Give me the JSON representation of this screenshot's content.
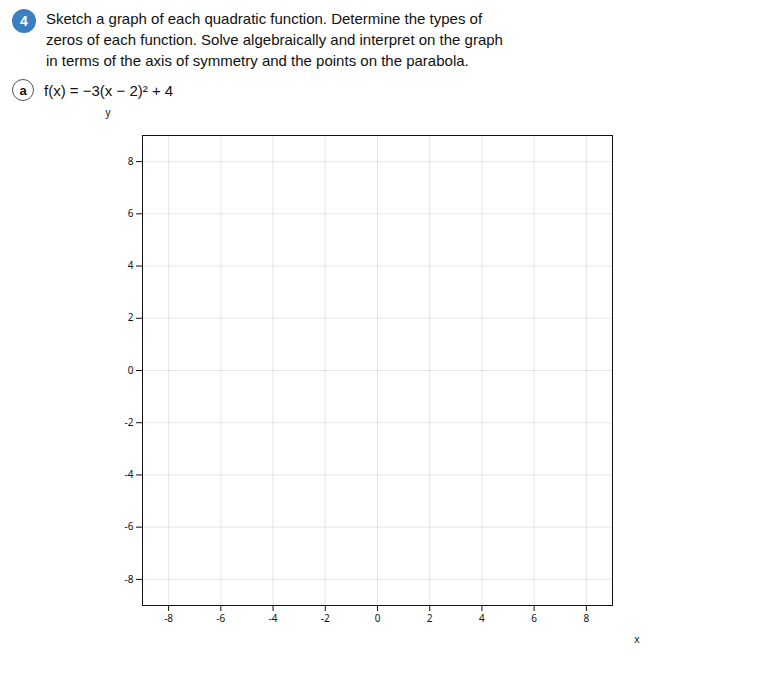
{
  "chart_data": {
    "type": "coordinate_grid",
    "title": "Sketch a graph of each quadratic function. Determine the types of\nzeros of each function. Solve algebraically and interpret on the graph\nin terms of the axis of symmetry and the points on the parabola.",
    "subtitle": "f(x) = −3(x − 2)² + 4",
    "annotations": [
      "4",
      "a"
    ],
    "x_label": "x",
    "y_label": "y",
    "xlim": [
      -9,
      9
    ],
    "ylim": [
      -9,
      9
    ],
    "xticks": [
      -8,
      -6,
      -4,
      -2,
      0,
      2,
      4,
      6,
      8
    ],
    "yticks": [
      -8,
      -6,
      -4,
      -2,
      0,
      2,
      4,
      6,
      8
    ],
    "grid": true
  }
}
